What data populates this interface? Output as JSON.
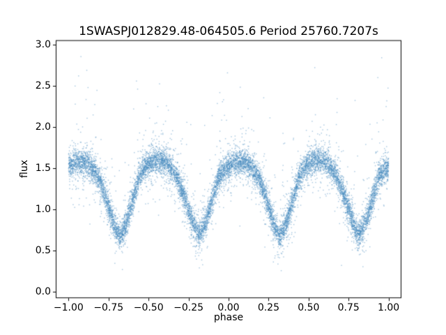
{
  "chart_data": {
    "type": "scatter",
    "title": "1SWASPJ012829.48-064505.6 Period 25760.7207s",
    "xlabel": "phase",
    "ylabel": "flux",
    "xlim": [
      -1.08,
      1.08
    ],
    "ylim": [
      -0.08,
      3.05
    ],
    "xticks": [
      -1.0,
      -0.75,
      -0.5,
      -0.25,
      0.0,
      0.25,
      0.5,
      0.75,
      1.0
    ],
    "xtick_labels": [
      "−1.00",
      "−0.75",
      "−0.50",
      "−0.25",
      "0.00",
      "0.25",
      "0.50",
      "0.75",
      "1.00"
    ],
    "yticks": [
      0.0,
      0.5,
      1.0,
      1.5,
      2.0,
      2.5,
      3.0
    ],
    "ytick_labels": [
      "0.0",
      "0.5",
      "1.0",
      "1.5",
      "2.0",
      "2.5",
      "3.0"
    ],
    "grid": false,
    "legend": null,
    "marker_color": "#4a8ec2",
    "marker_alpha": 0.5,
    "marker_size": 1.4,
    "n_points": 12000,
    "noise_sigma": 0.07,
    "outlier_sigma": 0.38,
    "seed": 42,
    "spine_color": "#000000",
    "mean_curve": {
      "phase": [
        0.0,
        0.04,
        0.08,
        0.12,
        0.16,
        0.2,
        0.24,
        0.28,
        0.32,
        0.36,
        0.4,
        0.44,
        0.48,
        0.52,
        0.56,
        0.6,
        0.64,
        0.68,
        0.72,
        0.76,
        0.8,
        0.82,
        0.86,
        0.9,
        0.94,
        1.0
      ],
      "flux": [
        1.52,
        1.57,
        1.58,
        1.55,
        1.47,
        1.33,
        1.1,
        0.84,
        0.66,
        0.82,
        1.1,
        1.38,
        1.52,
        1.58,
        1.6,
        1.58,
        1.5,
        1.37,
        1.18,
        0.93,
        0.73,
        0.7,
        0.86,
        1.13,
        1.4,
        1.52
      ]
    },
    "flux_min_observed": 0.06,
    "flux_max_observed": 2.93
  }
}
